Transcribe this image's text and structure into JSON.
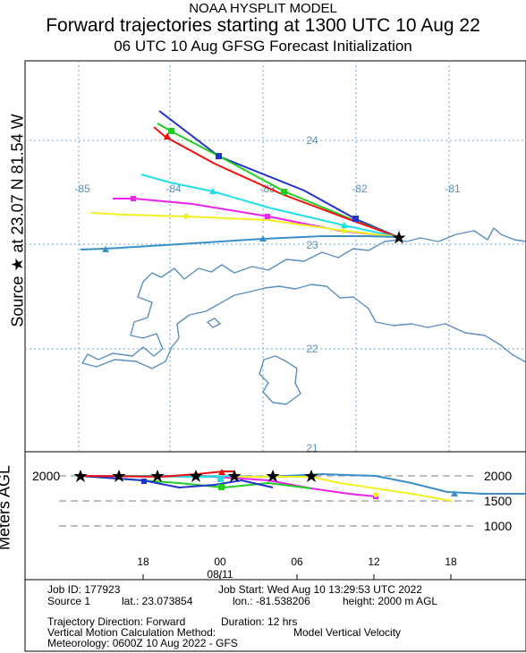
{
  "header": {
    "line1": "NOAA HYSPLIT MODEL",
    "line2": "Forward trajectories starting at 1300 UTC 10 Aug 22",
    "line3": "06 UTC 10 Aug    GFSG  Forecast Initialization"
  },
  "side_label": {
    "text": "Source ★ at  23.07 N  81.54 W"
  },
  "map": {
    "lon_labels": [
      "-85",
      "-84",
      "-83",
      "-82",
      "-81"
    ],
    "lat_labels": [
      "24",
      "23",
      "22",
      "21"
    ],
    "source_marker": "star-icon",
    "coastline_color": "#5b8fc0",
    "grid_color": "#6aa6d8"
  },
  "trajectories": [
    {
      "color": "#2233cc",
      "marker": "square"
    },
    {
      "color": "#22cc22",
      "marker": "square"
    },
    {
      "color": "#ee1111",
      "marker": "triangle"
    },
    {
      "color": "#22e0e8",
      "marker": "triangle"
    },
    {
      "color": "#ee22ee",
      "marker": "square"
    },
    {
      "color": "#f0f022",
      "marker": "circle"
    },
    {
      "color": "#3a8fc8",
      "marker": "triangle"
    }
  ],
  "height_panel": {
    "ylabel": "Meters AGL",
    "y_ticks": [
      "2000",
      "1500",
      "1000"
    ],
    "left_tick": "2000",
    "x_ticks": [
      "18",
      "00",
      "06",
      "12",
      "18"
    ],
    "date_label": "08/11"
  },
  "footer": {
    "job_id": "Job ID: 177923",
    "job_start": "Job Start: Wed Aug 10 13:29:53 UTC 2022",
    "source": "Source 1",
    "lat": "lat.: 23.073854",
    "lon": "lon.: -81.538206",
    "height": "height: 2000 m AGL",
    "direction": "Trajectory Direction: Forward",
    "duration": "Duration: 12 hrs",
    "vertical_method": "Vertical Motion Calculation Method:",
    "vertical_value": "Model Vertical Velocity",
    "meteorology": "Meteorology: 0600Z 10 Aug 2022 - GFS"
  }
}
